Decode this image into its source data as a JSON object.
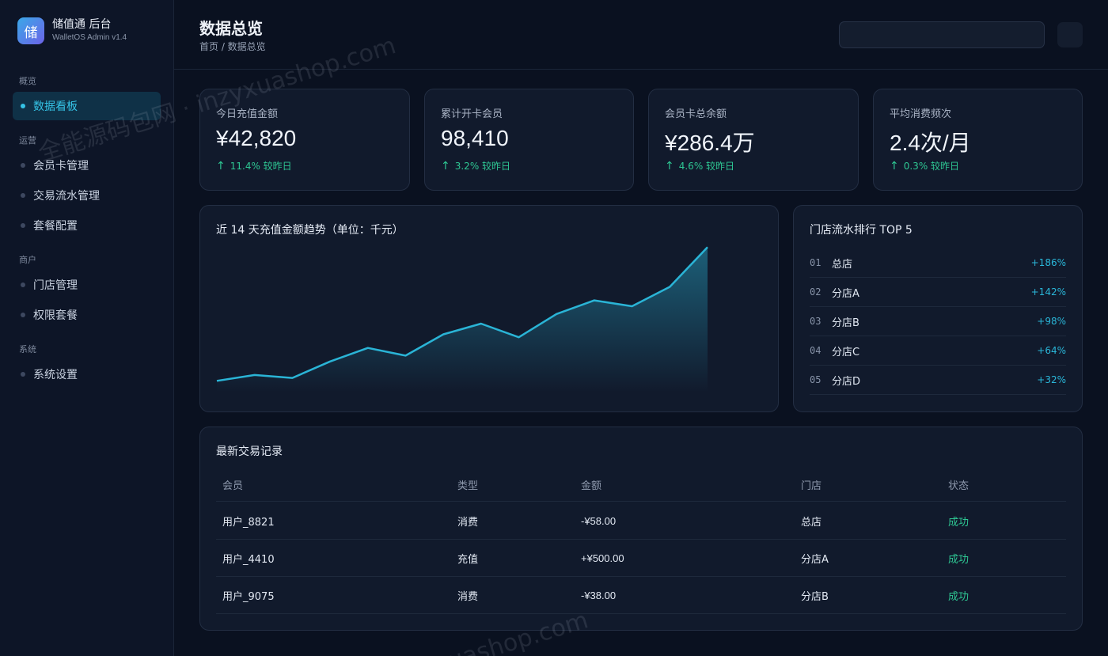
{
  "brand": {
    "logo_char": "储",
    "name": "储值通 后台",
    "version": "WalletOS Admin v1.4"
  },
  "sidebar": {
    "sections": [
      {
        "title": "概览",
        "items": [
          {
            "label": "数据看板",
            "active": true
          }
        ]
      },
      {
        "title": "运营",
        "items": [
          {
            "label": "会员卡管理"
          },
          {
            "label": "交易流水管理"
          },
          {
            "label": "套餐配置"
          }
        ]
      },
      {
        "title": "商户",
        "items": [
          {
            "label": "门店管理"
          },
          {
            "label": "权限套餐"
          }
        ]
      },
      {
        "title": "系统",
        "items": [
          {
            "label": "系统设置"
          }
        ]
      }
    ]
  },
  "header": {
    "title": "数据总览",
    "breadcrumb": "首页 / 数据总览",
    "search_value": ""
  },
  "stats": [
    {
      "label": "今日充值金额",
      "value": "¥42,820",
      "delta": "11.4% 较昨日"
    },
    {
      "label": "累计开卡会员",
      "value": "98,410",
      "delta": "3.2% 较昨日"
    },
    {
      "label": "会员卡总余额",
      "value": "¥286.4万",
      "delta": "4.6% 较昨日"
    },
    {
      "label": "平均消费频次",
      "value": "2.4次/月",
      "delta": "0.3% 较昨日"
    }
  ],
  "chart_data": {
    "type": "area",
    "title": "近 14 天充值金额趋势（单位：千元）",
    "x": [
      1,
      2,
      3,
      4,
      5,
      6,
      7,
      8,
      9,
      10,
      11,
      12,
      13,
      14
    ],
    "values": [
      6,
      9,
      7.5,
      16,
      23,
      19,
      30,
      35.5,
      28.5,
      40.5,
      47.5,
      44.5,
      54.5,
      75
    ],
    "ylim": [
      0,
      80
    ],
    "grid": false,
    "line_color": "#2ab4d6"
  },
  "ranking": {
    "title": "门店流水排行 TOP 5",
    "rows": [
      {
        "no": "01",
        "name": "总店",
        "pct": "+186%"
      },
      {
        "no": "02",
        "name": "分店A",
        "pct": "+142%"
      },
      {
        "no": "03",
        "name": "分店B",
        "pct": "+98%"
      },
      {
        "no": "04",
        "name": "分店C",
        "pct": "+64%"
      },
      {
        "no": "05",
        "name": "分店D",
        "pct": "+32%"
      }
    ]
  },
  "transactions": {
    "title": "最新交易记录",
    "columns": [
      "会员",
      "类型",
      "金额",
      "门店",
      "状态"
    ],
    "rows": [
      [
        "用户_8821",
        "消费",
        "-¥58.00",
        "总店",
        "成功"
      ],
      [
        "用户_4410",
        "充值",
        "+¥500.00",
        "分店A",
        "成功"
      ],
      [
        "用户_9075",
        "消费",
        "-¥38.00",
        "分店B",
        "成功"
      ]
    ]
  },
  "watermark": {
    "text1": "全能源码包网 · inzyxuashop.com",
    "text2": "xuashop.com"
  },
  "colors": {
    "accent": "#35c3e6",
    "success": "#2ec793",
    "background": "#0a1120",
    "card": "#111a2c"
  }
}
